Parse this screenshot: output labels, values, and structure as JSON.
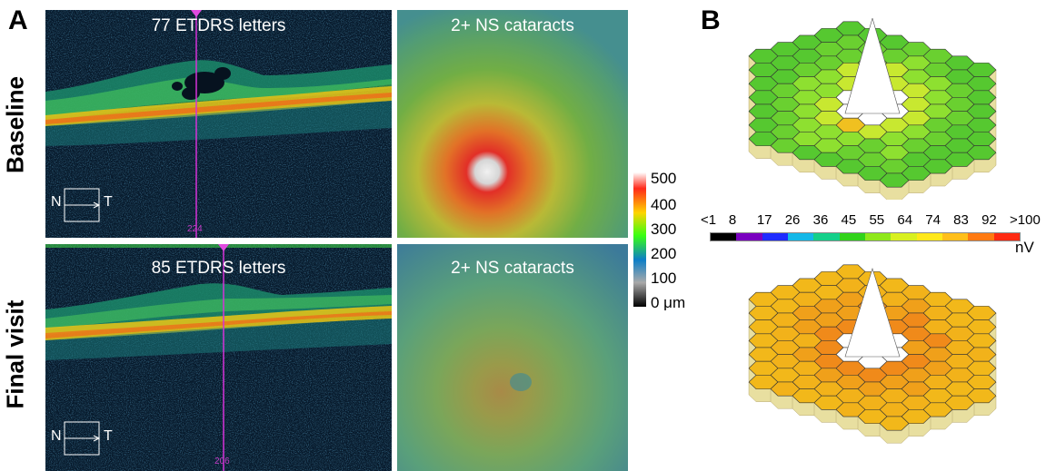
{
  "panels": {
    "a_label": "A",
    "b_label": "B"
  },
  "rows": [
    {
      "label": "Baseline",
      "oct_caption": "77 ETDRS letters",
      "oct_scan_number": "224",
      "map_caption": "2+ NS cataracts",
      "orientation": {
        "nasal": "N",
        "temporal": "T"
      }
    },
    {
      "label": "Final visit",
      "oct_caption": "85 ETDRS letters",
      "oct_scan_number": "206",
      "map_caption": "2+ NS cataracts",
      "orientation": {
        "nasal": "N",
        "temporal": "T"
      }
    }
  ],
  "thickness_scale": {
    "labels": [
      "500",
      "400",
      "300",
      "200",
      "100",
      "0 μm"
    ],
    "colors": [
      "#ffffff",
      "#ff2a1a",
      "#ffd400",
      "#39ff12",
      "#0c7ec7",
      "#a9a9a9",
      "#000000"
    ]
  },
  "mferg_scale": {
    "ticks": [
      "<1",
      "8",
      "17",
      "26",
      "36",
      "45",
      "55",
      "64",
      "74",
      "83",
      "92",
      ">100"
    ],
    "unit": "nV",
    "colors": [
      "#000000",
      "#7a00c0",
      "#1f2cff",
      "#14b8e8",
      "#14d08a",
      "#31d31a",
      "#8fe81a",
      "#d8f020",
      "#ffe81a",
      "#ffbf1a",
      "#ff7a12",
      "#ff2a12"
    ]
  },
  "colors": {
    "scan_line": "#d532d8",
    "oct_dark": "#071a2c"
  }
}
